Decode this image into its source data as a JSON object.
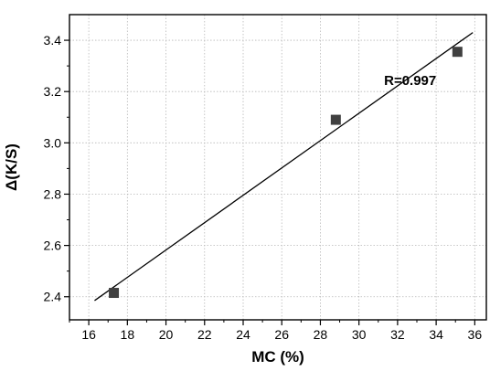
{
  "chart_data": {
    "type": "scatter",
    "xlabel": "MC (%)",
    "ylabel": "Δ(K/S)",
    "xlim": [
      15,
      36.6
    ],
    "ylim": [
      2.31,
      3.5
    ],
    "xticks": [
      16,
      18,
      20,
      22,
      24,
      26,
      28,
      30,
      32,
      34,
      36
    ],
    "yticks": [
      2.4,
      2.6,
      2.8,
      3.0,
      3.2,
      3.4
    ],
    "xtick_labels": [
      "16",
      "18",
      "20",
      "22",
      "24",
      "26",
      "28",
      "30",
      "32",
      "34",
      "36"
    ],
    "ytick_labels": [
      "2.4",
      "2.6",
      "2.8",
      "3.0",
      "3.2",
      "3.4"
    ],
    "grid": true,
    "series": [
      {
        "marker": "square",
        "color": "#404040",
        "points": [
          {
            "x": 17.3,
            "y": 2.415
          },
          {
            "x": 28.8,
            "y": 3.09
          },
          {
            "x": 35.1,
            "y": 3.355
          }
        ]
      }
    ],
    "fit_line": {
      "x": [
        16.3,
        35.9
      ],
      "y": [
        2.385,
        3.43
      ],
      "color": "#000000"
    },
    "annotation": {
      "text": "R=0.997",
      "x": 31.3,
      "y": 3.225
    }
  }
}
